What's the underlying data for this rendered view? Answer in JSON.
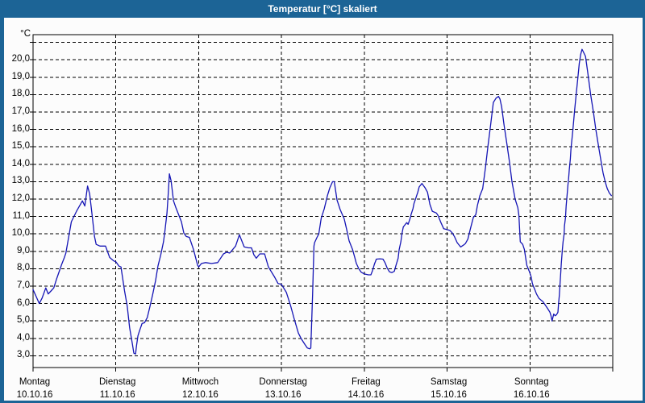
{
  "window": {
    "title": "Temperatur [°C] skaliert"
  },
  "colors": {
    "titlebar_bg": "#1c6496",
    "title_text": "#ffffff",
    "panel_bg": "#fcfcfc",
    "grid": "#000000",
    "frame": "#000000",
    "line": "#1515b5",
    "label_text": "#000000"
  },
  "chart_data": {
    "type": "line",
    "title": "Temperatur [°C] skaliert",
    "grid": "dashed",
    "legend": "none",
    "y_axis": {
      "unit": "°C",
      "range": [
        2.3,
        21.5
      ],
      "gridline_values": [
        21,
        20,
        19,
        18,
        17,
        16,
        15,
        14,
        13,
        12,
        11,
        10,
        9,
        8,
        7,
        6,
        5,
        4,
        3
      ],
      "ticks": [
        {
          "value": 20,
          "label": "20,0"
        },
        {
          "value": 19,
          "label": "19,0"
        },
        {
          "value": 18,
          "label": "18,0"
        },
        {
          "value": 17,
          "label": "17,0"
        },
        {
          "value": 16,
          "label": "16,0"
        },
        {
          "value": 15,
          "label": "15,0"
        },
        {
          "value": 14,
          "label": "14,0"
        },
        {
          "value": 13,
          "label": "13,0"
        },
        {
          "value": 12,
          "label": "12,0"
        },
        {
          "value": 11,
          "label": "11,0"
        },
        {
          "value": 10,
          "label": "10,0"
        },
        {
          "value": 9,
          "label": "9,0"
        },
        {
          "value": 8,
          "label": "8,0"
        },
        {
          "value": 7,
          "label": "7,0"
        },
        {
          "value": 6,
          "label": "6,0"
        },
        {
          "value": 5,
          "label": "5,0"
        },
        {
          "value": 4,
          "label": "4,0"
        },
        {
          "value": 3,
          "label": "3,0"
        }
      ]
    },
    "x_axis": {
      "hours_total": 168,
      "hours_per_day": 24,
      "days": [
        {
          "name": "Montag",
          "date": "10.10.16"
        },
        {
          "name": "Dienstag",
          "date": "11.10.16"
        },
        {
          "name": "Mittwoch",
          "date": "12.10.16"
        },
        {
          "name": "Donnerstag",
          "date": "13.10.16"
        },
        {
          "name": "Freitag",
          "date": "14.10.16"
        },
        {
          "name": "Samstag",
          "date": "15.10.16"
        },
        {
          "name": "Sonntag",
          "date": "16.10.16"
        }
      ]
    },
    "series": [
      {
        "name": "Temperatur",
        "color": "#1515b5",
        "points": [
          [
            0,
            6.8
          ],
          [
            0.9,
            6.4
          ],
          [
            1.8,
            6.0
          ],
          [
            2.6,
            6.3
          ],
          [
            3.7,
            6.9
          ],
          [
            4.4,
            6.55
          ],
          [
            5.1,
            6.7
          ],
          [
            6.0,
            6.9
          ],
          [
            6.8,
            7.4
          ],
          [
            7.6,
            7.85
          ],
          [
            8.3,
            8.25
          ],
          [
            9.0,
            8.6
          ],
          [
            9.5,
            8.9
          ],
          [
            10.3,
            9.8
          ],
          [
            11.1,
            10.7
          ],
          [
            12.6,
            11.3
          ],
          [
            14.3,
            11.9
          ],
          [
            15.0,
            11.6
          ],
          [
            15.8,
            12.75
          ],
          [
            16.4,
            12.3
          ],
          [
            17.1,
            11.1
          ],
          [
            17.8,
            9.85
          ],
          [
            18.3,
            9.4
          ],
          [
            19.4,
            9.3
          ],
          [
            21.0,
            9.3
          ],
          [
            22.2,
            8.65
          ],
          [
            23.4,
            8.45
          ],
          [
            24.0,
            8.4
          ],
          [
            24.9,
            8.15
          ],
          [
            25.5,
            8.1
          ],
          [
            25.7,
            7.8
          ],
          [
            26.5,
            6.75
          ],
          [
            27.3,
            5.85
          ],
          [
            28.0,
            4.6
          ],
          [
            28.8,
            3.65
          ],
          [
            29.2,
            3.15
          ],
          [
            29.7,
            3.1
          ],
          [
            30.0,
            3.6
          ],
          [
            30.4,
            4.15
          ],
          [
            30.8,
            4.4
          ],
          [
            31.6,
            4.85
          ],
          [
            32.3,
            4.9
          ],
          [
            33.1,
            5.2
          ],
          [
            33.9,
            5.85
          ],
          [
            34.7,
            6.55
          ],
          [
            35.5,
            7.3
          ],
          [
            36.2,
            8.15
          ],
          [
            37.0,
            8.8
          ],
          [
            37.8,
            9.55
          ],
          [
            38.2,
            10.15
          ],
          [
            38.8,
            11.2
          ],
          [
            39.2,
            12.4
          ],
          [
            39.5,
            13.45
          ],
          [
            40.0,
            13.05
          ],
          [
            40.7,
            11.9
          ],
          [
            41.4,
            11.5
          ],
          [
            43.0,
            10.7
          ],
          [
            43.7,
            10.05
          ],
          [
            44.4,
            9.85
          ],
          [
            45.3,
            9.8
          ],
          [
            46.5,
            9.1
          ],
          [
            47.7,
            8.2
          ],
          [
            48.0,
            8.1
          ],
          [
            48.8,
            8.3
          ],
          [
            50.0,
            8.35
          ],
          [
            51.7,
            8.3
          ],
          [
            53.5,
            8.35
          ],
          [
            55.2,
            8.85
          ],
          [
            56.1,
            8.95
          ],
          [
            57.0,
            8.9
          ],
          [
            58.7,
            9.3
          ],
          [
            59.8,
            9.95
          ],
          [
            61.2,
            9.25
          ],
          [
            62.4,
            9.2
          ],
          [
            63.3,
            9.2
          ],
          [
            64.0,
            8.8
          ],
          [
            64.7,
            8.6
          ],
          [
            65.7,
            8.85
          ],
          [
            67.1,
            8.85
          ],
          [
            68.2,
            8.1
          ],
          [
            69.9,
            7.55
          ],
          [
            71.0,
            7.15
          ],
          [
            72.0,
            7.1
          ],
          [
            73.4,
            6.65
          ],
          [
            74.6,
            5.9
          ],
          [
            75.7,
            5.1
          ],
          [
            76.9,
            4.3
          ],
          [
            77.8,
            3.95
          ],
          [
            78.8,
            3.65
          ],
          [
            79.5,
            3.45
          ],
          [
            80.2,
            3.4
          ],
          [
            80.5,
            3.45
          ],
          [
            81.0,
            6.5
          ],
          [
            81.4,
            9.3
          ],
          [
            81.6,
            9.5
          ],
          [
            82.3,
            9.8
          ],
          [
            82.8,
            10.0
          ],
          [
            83.5,
            10.9
          ],
          [
            84.4,
            11.45
          ],
          [
            85.3,
            12.2
          ],
          [
            86.0,
            12.65
          ],
          [
            86.8,
            13.0
          ],
          [
            87.3,
            13.0
          ],
          [
            88.1,
            11.95
          ],
          [
            89.0,
            11.4
          ],
          [
            90.2,
            10.85
          ],
          [
            90.9,
            10.25
          ],
          [
            91.6,
            9.6
          ],
          [
            92.6,
            9.1
          ],
          [
            93.3,
            8.6
          ],
          [
            93.7,
            8.3
          ],
          [
            94.4,
            8.0
          ],
          [
            95.1,
            7.8
          ],
          [
            96.0,
            7.7
          ],
          [
            97.2,
            7.65
          ],
          [
            97.9,
            7.65
          ],
          [
            98.4,
            7.9
          ],
          [
            98.9,
            8.25
          ],
          [
            99.5,
            8.55
          ],
          [
            100.5,
            8.57
          ],
          [
            101.4,
            8.55
          ],
          [
            102.0,
            8.35
          ],
          [
            102.6,
            8.05
          ],
          [
            103.3,
            7.82
          ],
          [
            104.0,
            7.78
          ],
          [
            104.7,
            7.85
          ],
          [
            105.2,
            8.2
          ],
          [
            105.8,
            8.6
          ],
          [
            106.1,
            9.1
          ],
          [
            106.6,
            9.55
          ],
          [
            106.9,
            10.0
          ],
          [
            107.3,
            10.4
          ],
          [
            107.7,
            10.5
          ],
          [
            108.3,
            10.65
          ],
          [
            108.7,
            10.55
          ],
          [
            109.2,
            10.85
          ],
          [
            109.6,
            11.15
          ],
          [
            110.1,
            11.45
          ],
          [
            110.4,
            11.75
          ],
          [
            111.0,
            12.1
          ],
          [
            111.5,
            12.4
          ],
          [
            111.9,
            12.7
          ],
          [
            112.7,
            12.9
          ],
          [
            113.6,
            12.65
          ],
          [
            114.3,
            12.4
          ],
          [
            115.0,
            11.7
          ],
          [
            115.7,
            11.3
          ],
          [
            116.9,
            11.2
          ],
          [
            117.4,
            11.05
          ],
          [
            118.2,
            10.65
          ],
          [
            119.0,
            10.3
          ],
          [
            119.9,
            10.25
          ],
          [
            120.8,
            10.2
          ],
          [
            121.5,
            10.05
          ],
          [
            122.1,
            9.85
          ],
          [
            122.9,
            9.5
          ],
          [
            123.9,
            9.25
          ],
          [
            124.7,
            9.35
          ],
          [
            125.3,
            9.45
          ],
          [
            126.0,
            9.7
          ],
          [
            126.7,
            10.25
          ],
          [
            127.6,
            10.95
          ],
          [
            128.3,
            11.1
          ],
          [
            128.8,
            11.65
          ],
          [
            129.5,
            12.2
          ],
          [
            130.3,
            12.6
          ],
          [
            131.1,
            13.8
          ],
          [
            131.8,
            15.0
          ],
          [
            132.6,
            16.25
          ],
          [
            133.4,
            17.55
          ],
          [
            134.2,
            17.8
          ],
          [
            134.9,
            17.9
          ],
          [
            135.3,
            17.75
          ],
          [
            135.8,
            17.3
          ],
          [
            136.5,
            16.25
          ],
          [
            137.3,
            15.2
          ],
          [
            138.1,
            14.1
          ],
          [
            138.8,
            13.0
          ],
          [
            139.7,
            12.0
          ],
          [
            140.5,
            11.5
          ],
          [
            140.8,
            11.05
          ],
          [
            141.2,
            9.55
          ],
          [
            141.9,
            9.4
          ],
          [
            142.4,
            9.1
          ],
          [
            143.1,
            8.2
          ],
          [
            143.9,
            7.8
          ],
          [
            144.4,
            7.5
          ],
          [
            144.7,
            7.15
          ],
          [
            145.1,
            6.95
          ],
          [
            145.4,
            6.8
          ],
          [
            145.9,
            6.55
          ],
          [
            146.6,
            6.3
          ],
          [
            147.8,
            6.1
          ],
          [
            149.0,
            5.75
          ],
          [
            149.8,
            5.5
          ],
          [
            150.1,
            5.3
          ],
          [
            150.4,
            5.0
          ],
          [
            150.9,
            5.4
          ],
          [
            151.3,
            5.3
          ],
          [
            151.7,
            5.35
          ],
          [
            152.1,
            5.5
          ],
          [
            152.3,
            6.0
          ],
          [
            152.5,
            6.45
          ],
          [
            152.7,
            7.05
          ],
          [
            152.9,
            7.7
          ],
          [
            153.1,
            8.3
          ],
          [
            153.4,
            9.1
          ],
          [
            153.6,
            9.55
          ],
          [
            153.9,
            10.0
          ],
          [
            154.0,
            10.45
          ],
          [
            154.3,
            10.95
          ],
          [
            154.5,
            11.6
          ],
          [
            154.8,
            12.3
          ],
          [
            155.0,
            12.8
          ],
          [
            155.2,
            13.15
          ],
          [
            155.4,
            13.7
          ],
          [
            155.7,
            14.3
          ],
          [
            155.9,
            14.9
          ],
          [
            156.4,
            15.9
          ],
          [
            156.9,
            17.0
          ],
          [
            157.4,
            18.0
          ],
          [
            157.9,
            19.0
          ],
          [
            158.3,
            19.8
          ],
          [
            158.7,
            20.3
          ],
          [
            159.1,
            20.6
          ],
          [
            159.5,
            20.45
          ],
          [
            160.1,
            20.2
          ],
          [
            160.8,
            19.2
          ],
          [
            161.6,
            18.0
          ],
          [
            162.4,
            17.0
          ],
          [
            163.1,
            16.0
          ],
          [
            163.9,
            15.0
          ],
          [
            164.6,
            14.2
          ],
          [
            165.2,
            13.5
          ],
          [
            165.8,
            13.0
          ],
          [
            166.4,
            12.6
          ],
          [
            167.0,
            12.35
          ],
          [
            167.6,
            12.2
          ]
        ]
      }
    ]
  }
}
